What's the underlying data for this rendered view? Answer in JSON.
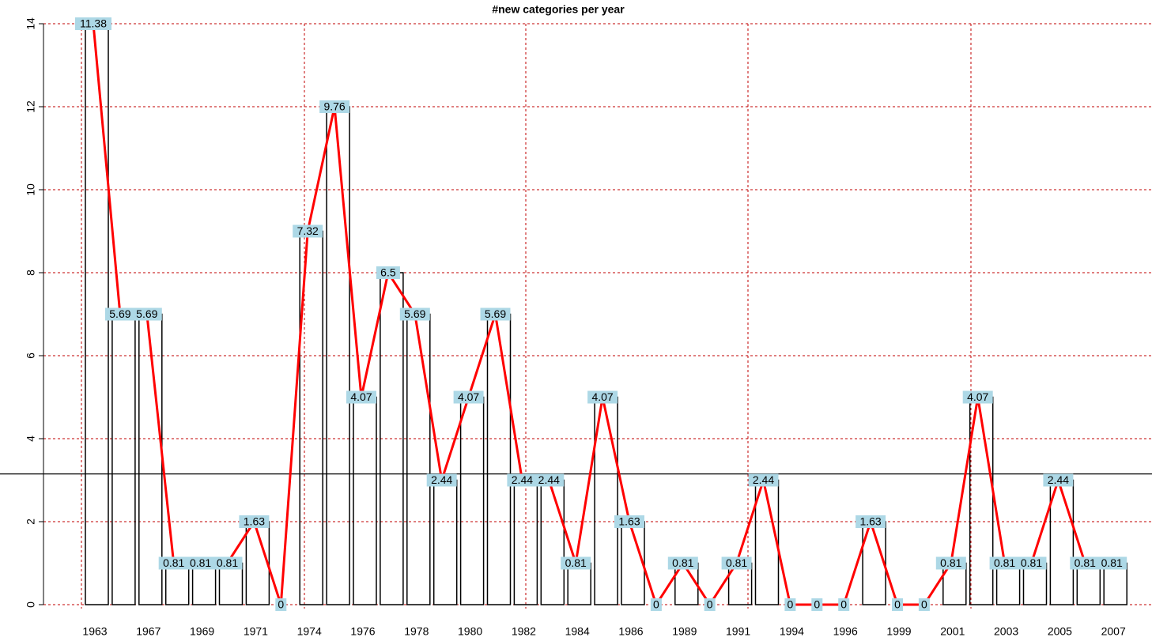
{
  "chart_data": {
    "type": "bar-line",
    "title": "#new categories per year",
    "categories": [
      "1963",
      null,
      "1967",
      null,
      "1969",
      null,
      "1971",
      null,
      "1974",
      null,
      "1976",
      null,
      "1978",
      null,
      "1980",
      null,
      "1982",
      null,
      "1984",
      null,
      "1986",
      null,
      "1989",
      null,
      "1991",
      null,
      "1994",
      null,
      "1996",
      null,
      "1999",
      null,
      "2001",
      null,
      "2003",
      null,
      "2005",
      null,
      "2007"
    ],
    "values": [
      14,
      7,
      7,
      1,
      1,
      1,
      2,
      0,
      9,
      12,
      5,
      8,
      7,
      3,
      5,
      7,
      3,
      3,
      1,
      5,
      2,
      0,
      1,
      0,
      1,
      3,
      0,
      0,
      0,
      2,
      0,
      0,
      1,
      5,
      1,
      1,
      3,
      1,
      1
    ],
    "value_labels": [
      "11.38",
      "5.69",
      "5.69",
      "0.81",
      "0.81",
      "0.81",
      "1.63",
      "0",
      "7.32",
      "9.76",
      "4.07",
      "6.5",
      "5.69",
      "2.44",
      "4.07",
      "5.69",
      "2.44",
      "2.44",
      "0.81",
      "4.07",
      "1.63",
      "0",
      "0.81",
      "0",
      "0.81",
      "2.44",
      "0",
      "0",
      "0",
      "1.63",
      "0",
      "0",
      "0.81",
      "4.07",
      "0.81",
      "0.81",
      "2.44",
      "0.81",
      "0.81"
    ],
    "color": "#ff0000",
    "bar_color": "#000000",
    "label_background": "#add8e6",
    "reference_line": 3.15,
    "ylim": [
      0,
      14
    ],
    "yticks": [
      0,
      2,
      4,
      6,
      8,
      10,
      12,
      14
    ],
    "grid": true
  }
}
